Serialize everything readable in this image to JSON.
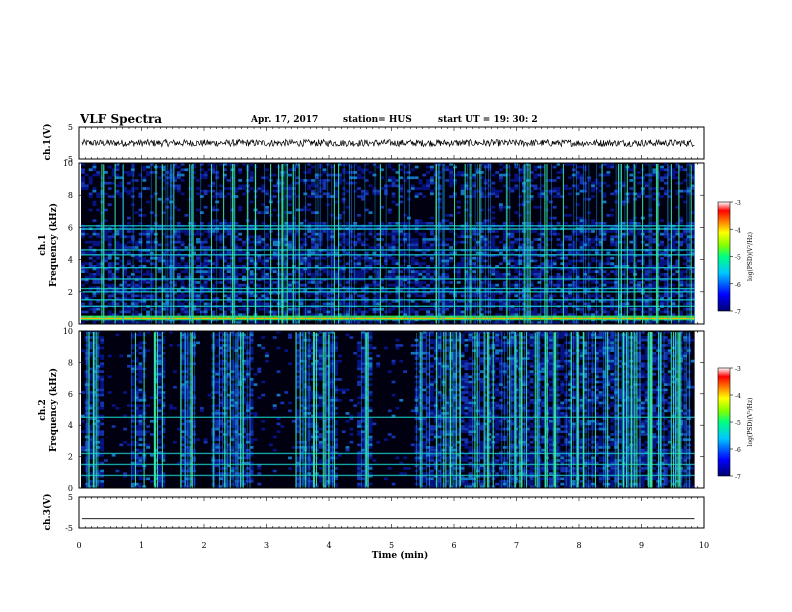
{
  "header": {
    "title": "VLF Spectra",
    "date": "Apr. 17, 2017",
    "station": "station= HUS",
    "start": "start  UT  =   19: 30: 2"
  },
  "chart_data": [
    {
      "type": "line",
      "panel": "ch1-waveform",
      "ylabel": "ch.1(V)",
      "ylim": [
        -5,
        5
      ],
      "yticks": [
        "5",
        "-5"
      ],
      "description_values": {
        "baseline_volts": 0
      }
    },
    {
      "type": "heatmap",
      "panel": "ch1-spectrogram",
      "ylabel_line1": "ch.1",
      "ylabel_line2": "Frequency (kHz)",
      "ylim": [
        0,
        10
      ],
      "yticks": [
        "0",
        "2",
        "4",
        "6",
        "8",
        "10"
      ],
      "colorbar": {
        "label": "log(PSD)(V²/Hz)",
        "range": [
          -7,
          -3
        ],
        "ticks": [
          "-3",
          "-4",
          "-5",
          "-6",
          "-7"
        ],
        "colors": [
          "#000080",
          "#0000ff",
          "#00c8ff",
          "#00ff80",
          "#80ff00",
          "#ffff00",
          "#ff8000",
          "#ff0000",
          "#ffffff"
        ]
      },
      "bands_khz": [
        0.3,
        0.45,
        1.1,
        1.5,
        2.0,
        2.2,
        2.8,
        3.5,
        4.3,
        4.6,
        5.9,
        6.1
      ]
    },
    {
      "type": "heatmap",
      "panel": "ch2-spectrogram",
      "ylabel_line1": "ch.2",
      "ylabel_line2": "Frequency (kHz)",
      "ylim": [
        0,
        10
      ],
      "yticks": [
        "0",
        "2",
        "4",
        "6",
        "8",
        "10"
      ],
      "colorbar": {
        "label": "log(PSD)(V²/Hz)",
        "range": [
          -7,
          -3
        ],
        "ticks": [
          "-3",
          "-4",
          "-5",
          "-6",
          "-7"
        ]
      },
      "bands_khz": [
        0.8,
        1.5,
        2.2,
        4.5
      ],
      "active_intervals_min": [
        [
          0.05,
          0.4
        ],
        [
          0.8,
          1.05
        ],
        [
          1.2,
          1.35
        ],
        [
          1.6,
          1.85
        ],
        [
          2.1,
          2.75
        ],
        [
          3.45,
          4.1
        ],
        [
          4.45,
          4.65
        ],
        [
          5.35,
          9.8
        ]
      ]
    },
    {
      "type": "line",
      "panel": "ch3-waveform",
      "ylabel": "ch.3(V)",
      "ylim": [
        -5,
        5
      ],
      "yticks": [
        "5",
        "-5"
      ],
      "description_values": {
        "baseline_volts": -2
      }
    }
  ],
  "xaxis": {
    "label": "Time (min)",
    "range": [
      0,
      10
    ],
    "ticks": [
      "0",
      "1",
      "2",
      "3",
      "4",
      "5",
      "6",
      "7",
      "8",
      "9",
      "10"
    ],
    "data_end_min": 9.85
  }
}
